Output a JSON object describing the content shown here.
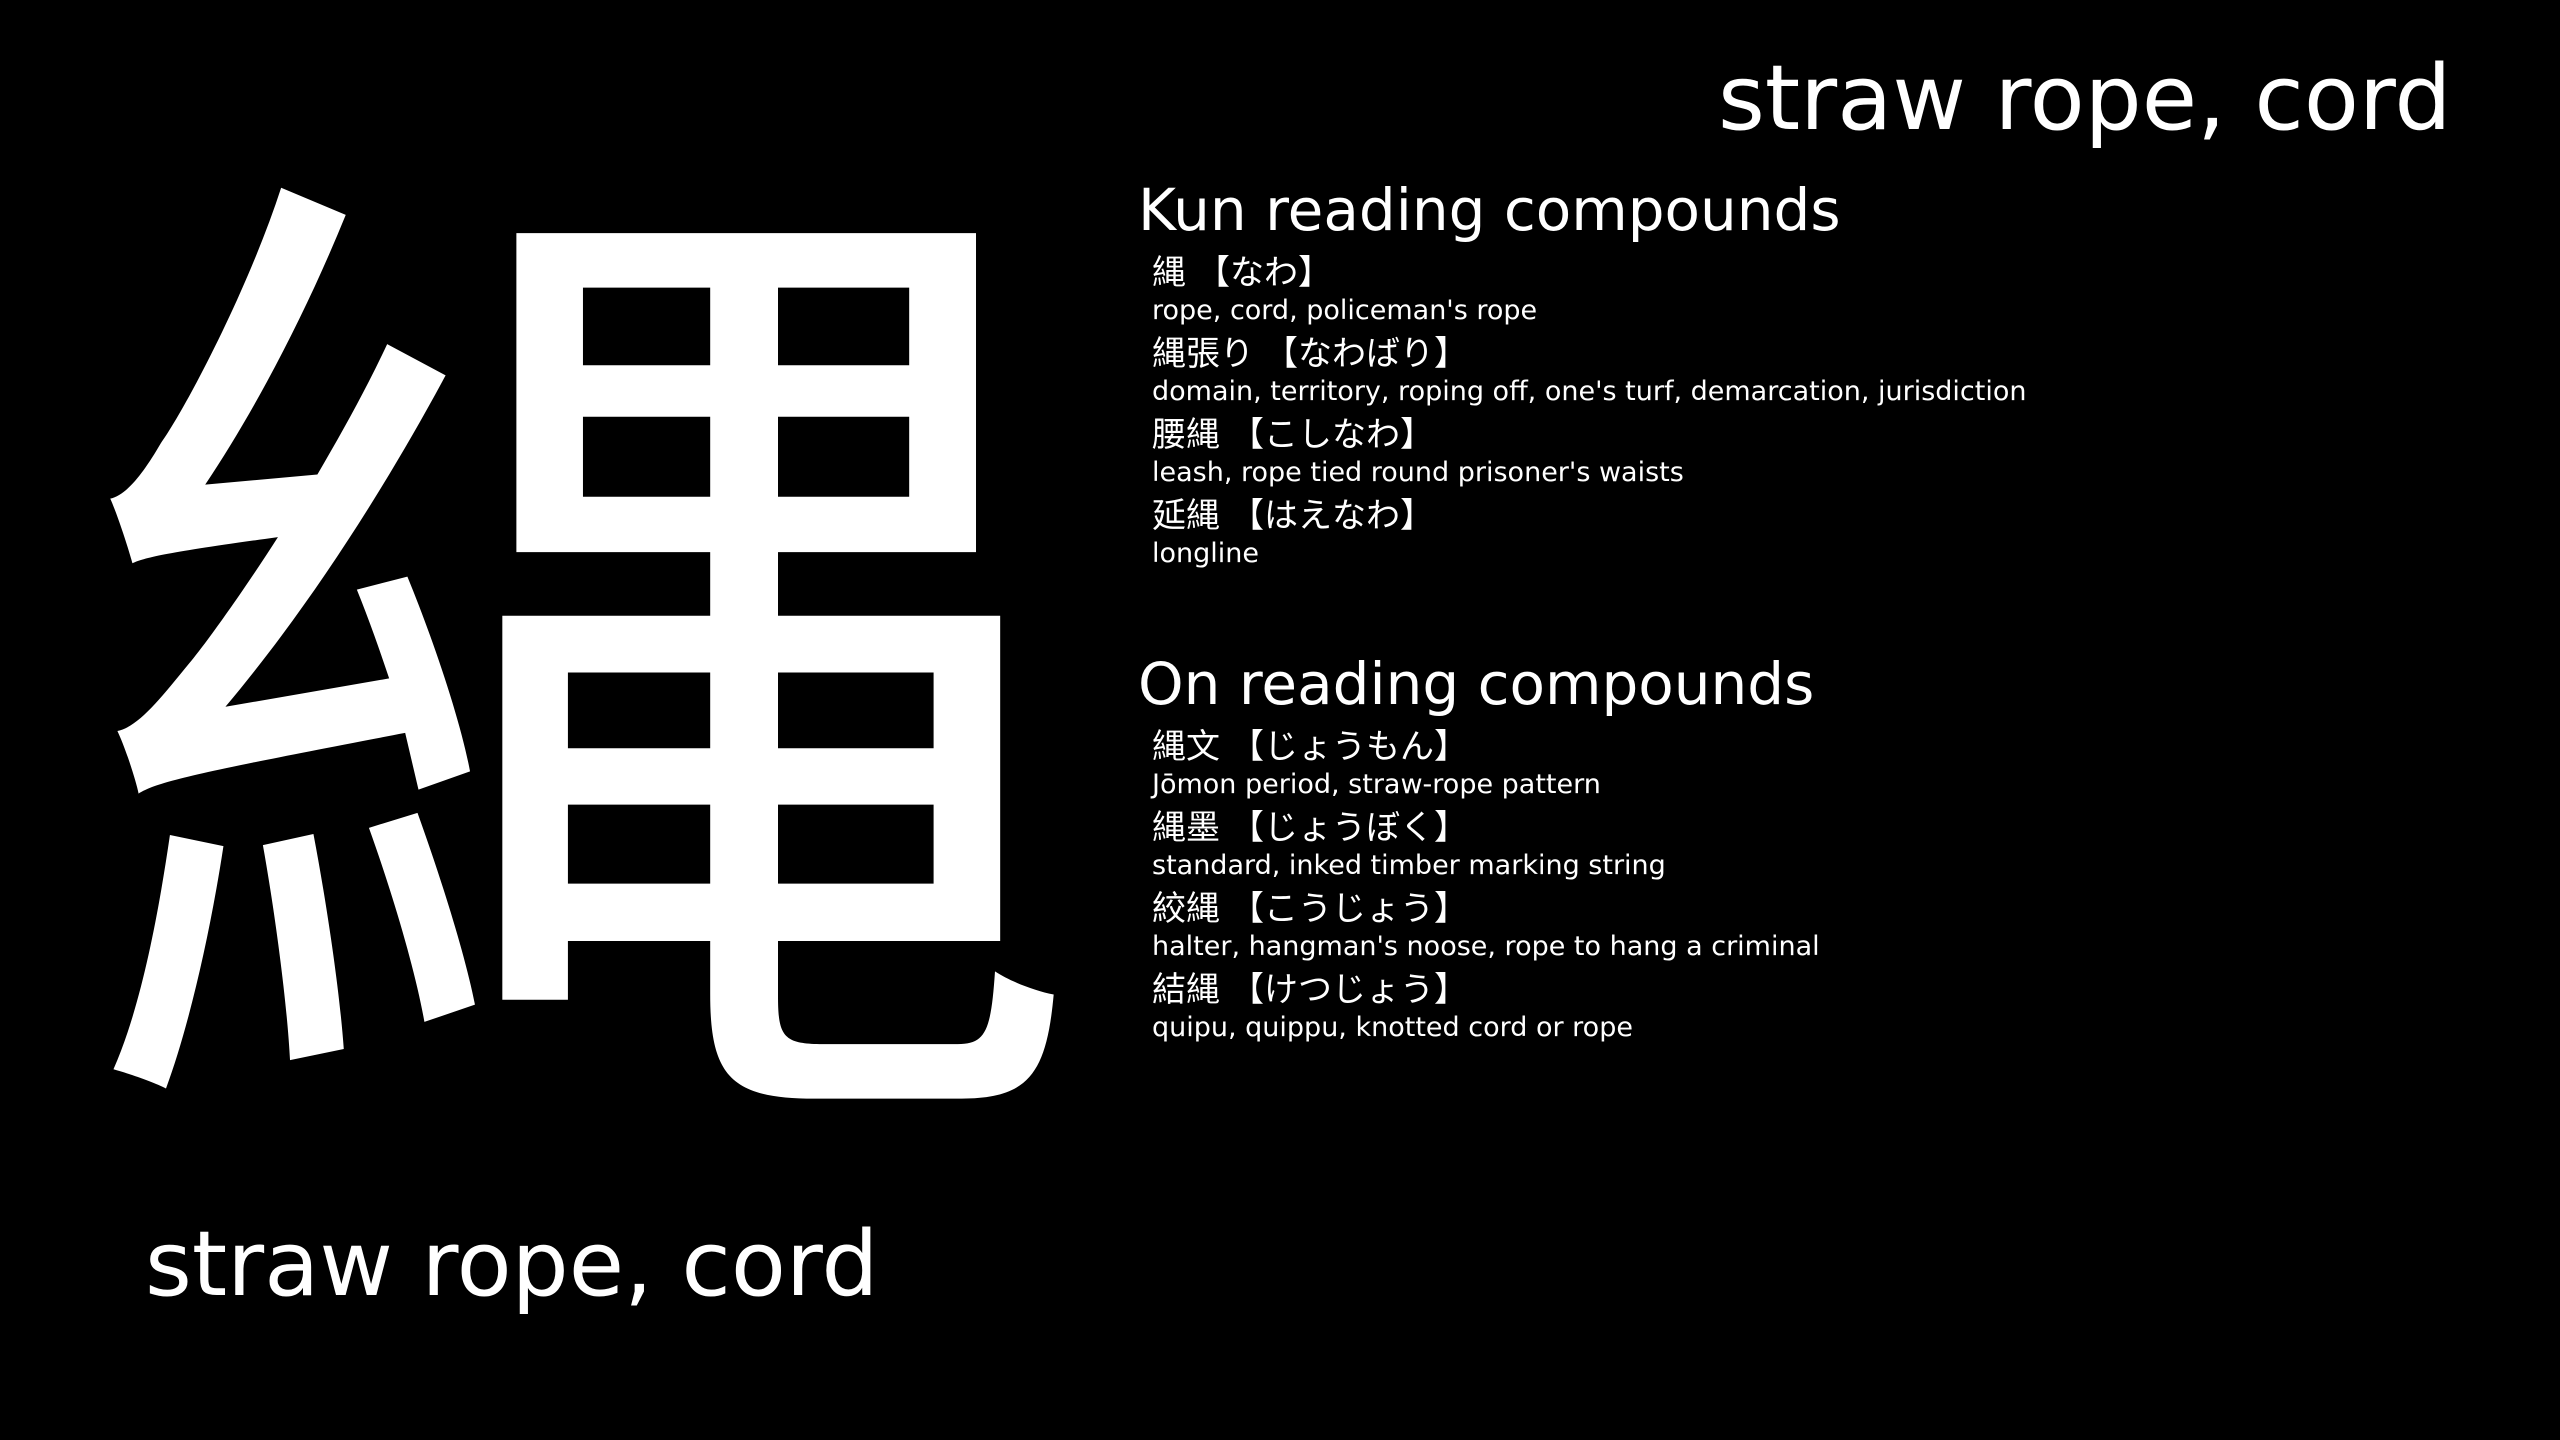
{
  "kanji": "縄",
  "meaning": "straw rope, cord",
  "kun_section": {
    "title": "Kun reading compounds",
    "entries": [
      {
        "word": "縄",
        "reading": "【なわ】",
        "gloss": "rope, cord, policeman's rope"
      },
      {
        "word": "縄張り",
        "reading": "【なわばり】",
        "gloss": "domain, territory, roping off, one's turf, demarcation, jurisdiction"
      },
      {
        "word": "腰縄",
        "reading": "【こしなわ】",
        "gloss": "leash, rope tied round prisoner's waists"
      },
      {
        "word": "延縄",
        "reading": "【はえなわ】",
        "gloss": "longline"
      }
    ]
  },
  "on_section": {
    "title": "On reading compounds",
    "entries": [
      {
        "word": "縄文",
        "reading": "【じょうもん】",
        "gloss": "Jōmon period, straw-rope pattern"
      },
      {
        "word": "縄墨",
        "reading": "【じょうぼく】",
        "gloss": "standard, inked timber marking string"
      },
      {
        "word": "絞縄",
        "reading": "【こうじょう】",
        "gloss": "halter, hangman's noose, rope to hang a criminal"
      },
      {
        "word": "結縄",
        "reading": "【けつじょう】",
        "gloss": "quipu, quippu, knotted cord or rope"
      }
    ]
  },
  "colors": {
    "background": "#000000",
    "text": "#ffffff"
  }
}
